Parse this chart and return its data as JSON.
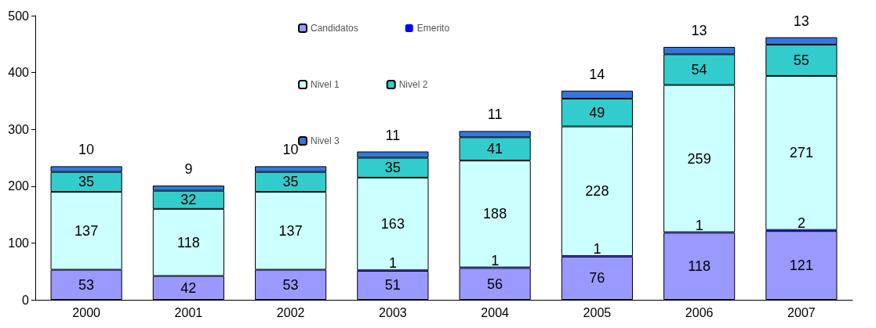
{
  "chart_data": {
    "type": "bar",
    "stacked": true,
    "data_labels": true,
    "grid": false,
    "legend": "top",
    "categories": [
      "2000",
      "2001",
      "2002",
      "2003",
      "2004",
      "2005",
      "2006",
      "2007"
    ],
    "series": [
      {
        "name": "Candidatos",
        "color": "#9999ff",
        "values": [
          53,
          42,
          53,
          51,
          56,
          76,
          118,
          121
        ]
      },
      {
        "name": "Emerito",
        "color": "#0000ff",
        "values": [
          null,
          null,
          null,
          1,
          1,
          1,
          1,
          2
        ]
      },
      {
        "name": "Nivel 1",
        "color": "#ccffff",
        "values": [
          137,
          118,
          137,
          163,
          188,
          228,
          259,
          271
        ]
      },
      {
        "name": "Nivel 2",
        "color": "#33cccc",
        "values": [
          35,
          32,
          35,
          35,
          41,
          49,
          54,
          55
        ]
      },
      {
        "name": "Nivel 3",
        "color": "#3377dd",
        "values": [
          10,
          9,
          10,
          11,
          11,
          14,
          13,
          13
        ]
      }
    ],
    "ylim": [
      0,
      500
    ],
    "yticks": [
      0,
      100,
      200,
      300,
      400,
      500
    ]
  }
}
